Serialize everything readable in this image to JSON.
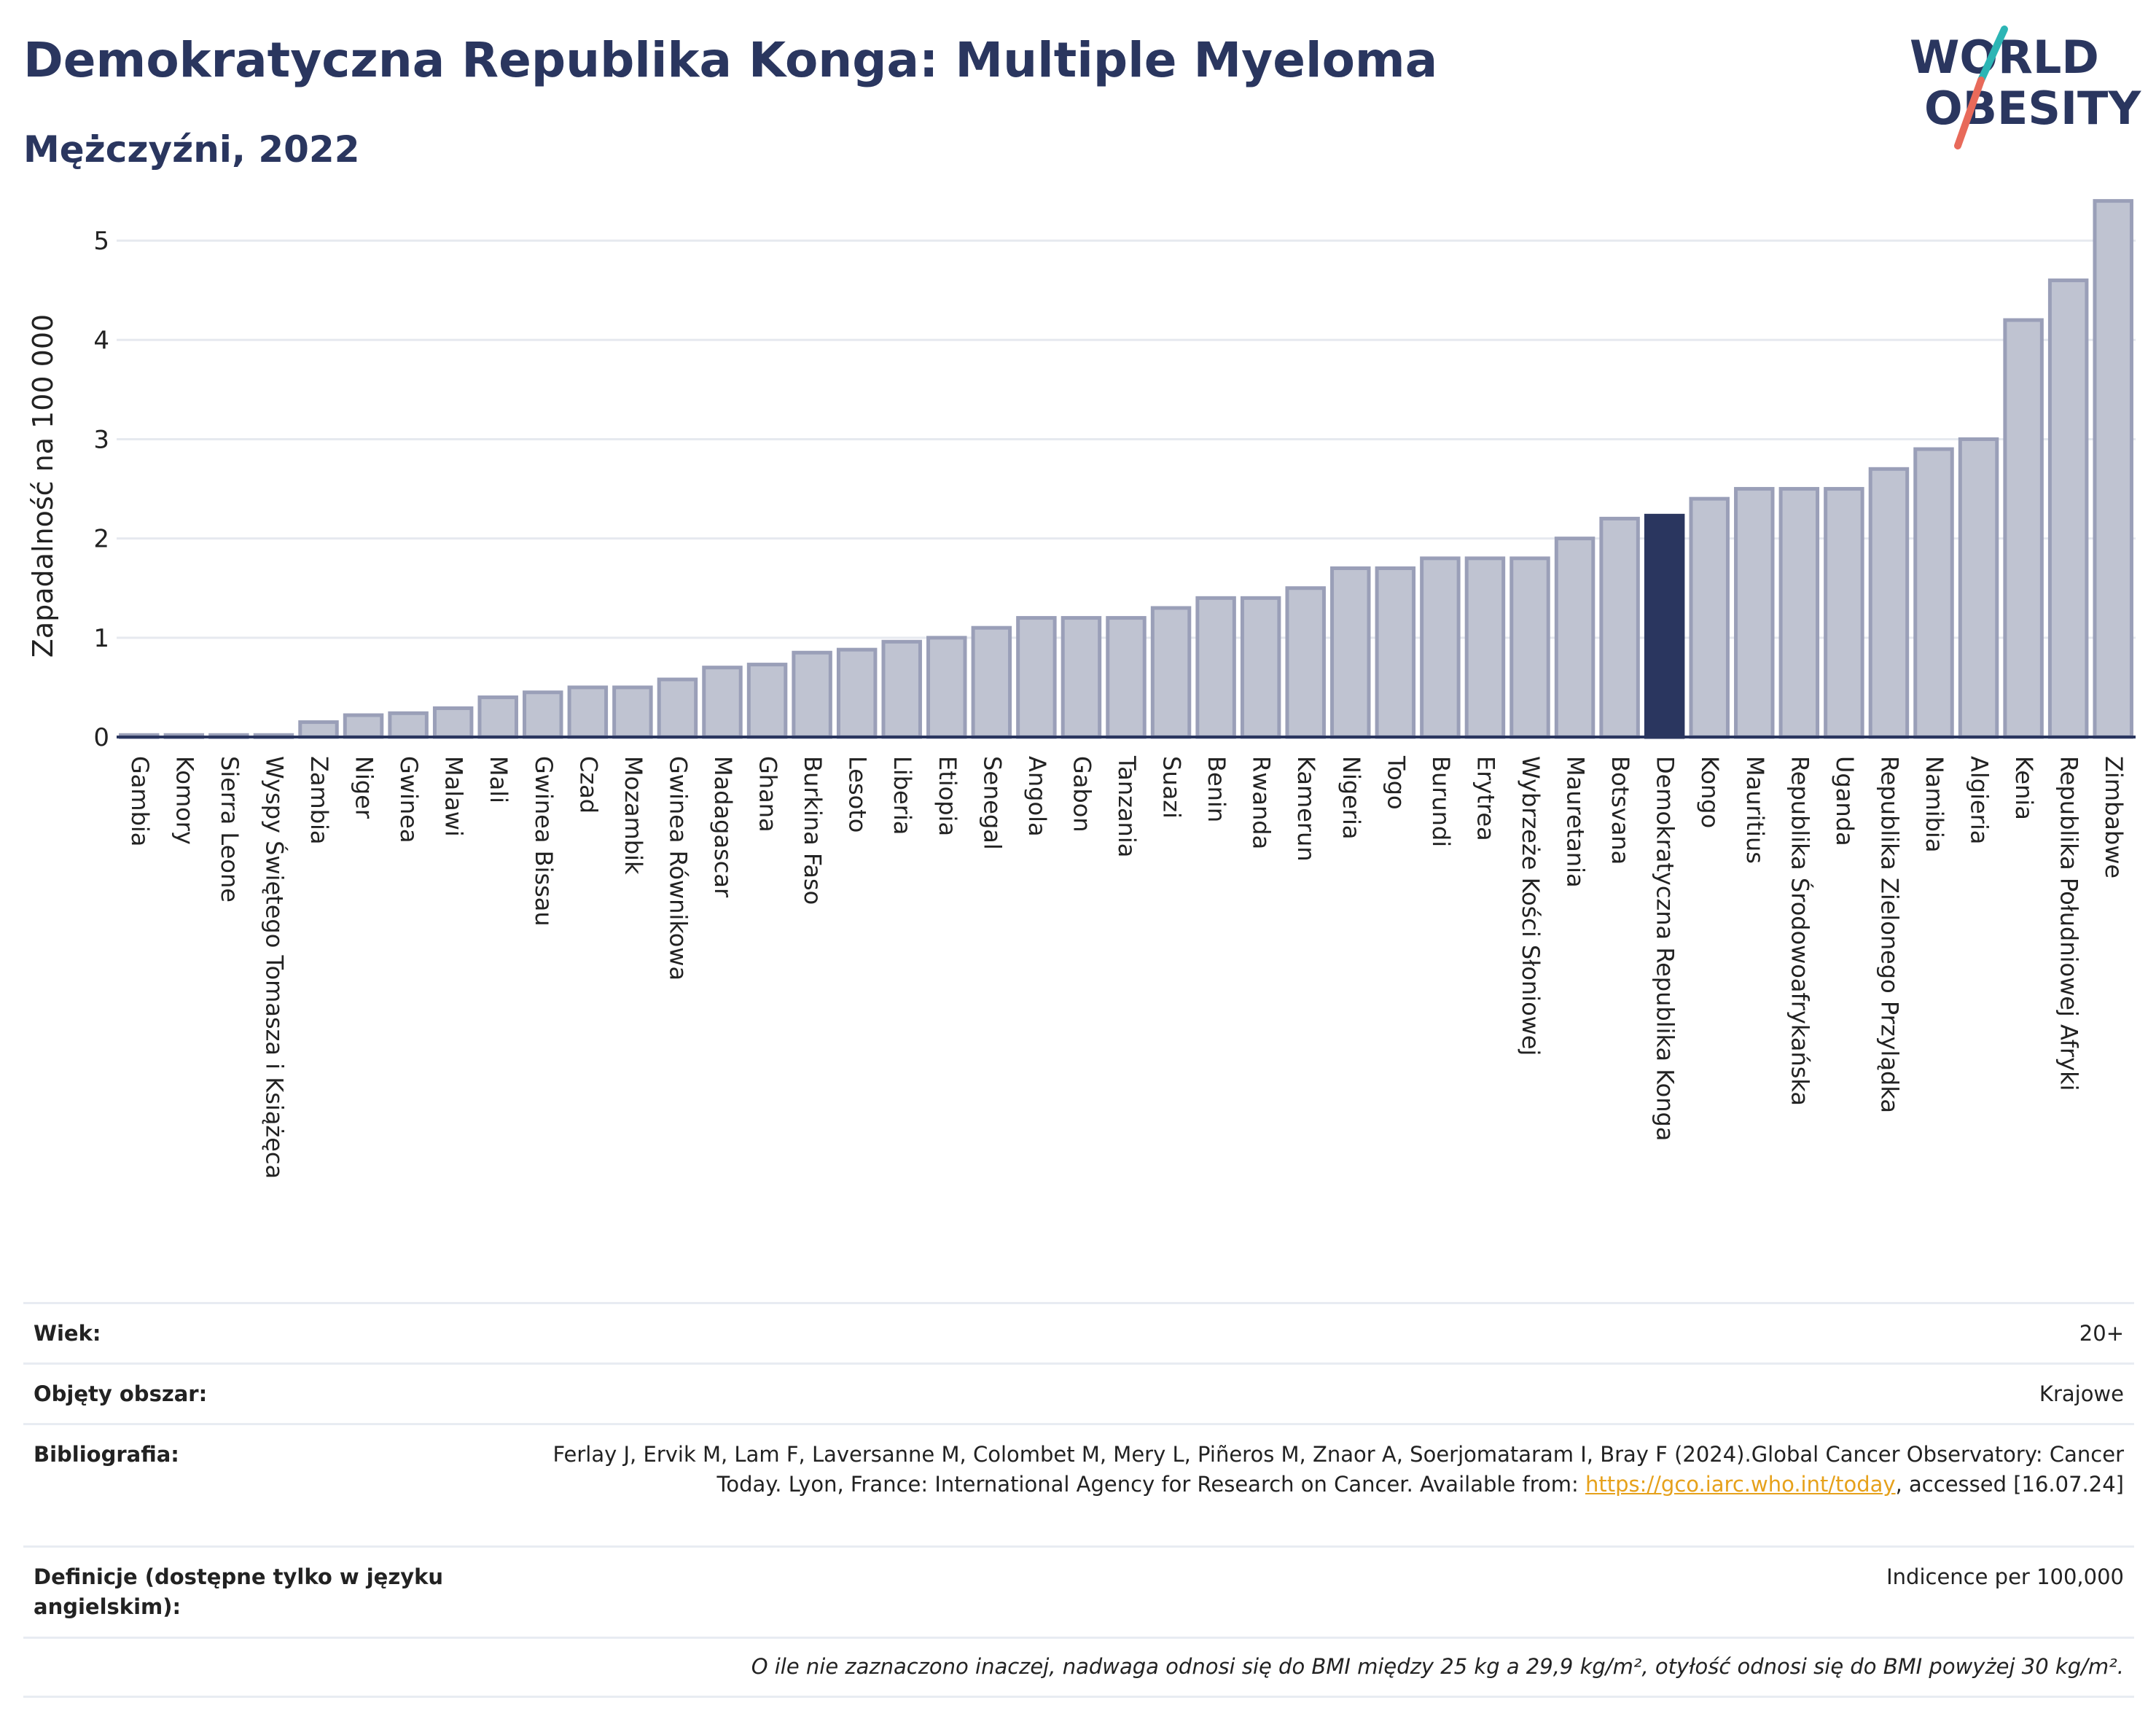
{
  "header": {
    "title": "Demokratyczna Republika Konga: Multiple Myeloma",
    "subtitle": "Mężczyźni, 2022"
  },
  "logo": {
    "line1": "WORLD",
    "line2": "OBESITY",
    "colors": {
      "text": "#2a365f",
      "slash_top": "#2cb5b5",
      "slash_bottom": "#e86a5a"
    }
  },
  "chart_data": {
    "type": "bar",
    "title": "Demokratyczna Republika Konga: Multiple Myeloma",
    "subtitle": "Mężczyźni, 2022",
    "ylabel": "Zapadalność na 100 000",
    "xlabel": "",
    "ylim": [
      0,
      5.5
    ],
    "yticks": [
      0,
      1,
      2,
      3,
      4,
      5
    ],
    "grid": true,
    "highlight": "Demokratyczna Republika Konga",
    "colors": {
      "bar": "#bfc3d1",
      "bar_edge": "#9a9fb8",
      "highlight": "#2a365f"
    },
    "categories": [
      "Gambia",
      "Komory",
      "Sierra Leone",
      "Wyspy Świętego Tomasza i Książęca",
      "Zambia",
      "Niger",
      "Gwinea",
      "Malawi",
      "Mali",
      "Gwinea Bissau",
      "Czad",
      "Mozambik",
      "Gwinea Równikowa",
      "Madagascar",
      "Ghana",
      "Burkina Faso",
      "Lesoto",
      "Liberia",
      "Etiopia",
      "Senegal",
      "Angola",
      "Gabon",
      "Tanzania",
      "Suazi",
      "Benin",
      "Rwanda",
      "Kamerun",
      "Nigeria",
      "Togo",
      "Burundi",
      "Erytrea",
      "Wybrzeże Kości Słoniowej",
      "Mauretania",
      "Botsvana",
      "Demokratyczna Republika Konga",
      "Kongo",
      "Mauritius",
      "Republika Środowoafrykańska",
      "Uganda",
      "Republika Zielonego Przylądka",
      "Namibia",
      "Algieria",
      "Kenia",
      "Republika Południowej Afryki",
      "Zimbabwe"
    ],
    "values": [
      0.02,
      0.02,
      0.02,
      0.02,
      0.15,
      0.22,
      0.24,
      0.29,
      0.4,
      0.45,
      0.5,
      0.5,
      0.58,
      0.7,
      0.73,
      0.85,
      0.88,
      0.96,
      1.0,
      1.1,
      1.2,
      1.2,
      1.2,
      1.3,
      1.4,
      1.4,
      1.5,
      1.7,
      1.7,
      1.8,
      1.8,
      1.8,
      2.0,
      2.2,
      2.23,
      2.4,
      2.5,
      2.5,
      2.5,
      2.7,
      2.9,
      3.0,
      4.2,
      4.6,
      5.4
    ]
  },
  "info": {
    "age_label": "Wiek:",
    "age_value": "20+",
    "coverage_label": "Objęty obszar:",
    "coverage_value": "Krajowe",
    "biblio_label": "Bibliografia:",
    "biblio_text_before": "Ferlay J, Ervik M, Lam F, Laversanne M, Colombet M, Mery L, Piñeros M, Znaor A, Soerjomataram I, Bray F (2024).Global Cancer Observatory: Cancer Today. Lyon, France: International Agency for Research on Cancer. Available from: ",
    "biblio_link": "https://gco.iarc.who.int/today",
    "biblio_text_after": ", accessed [16.07.24]",
    "definitions_label": "Definicje (dostępne tylko w języku angielskim):",
    "definitions_value": "Indicence per 100,000",
    "note": "O ile nie zaznaczono inaczej, nadwaga odnosi się do BMI między 25 kg a 29,9 kg/m², otyłość odnosi się do BMI powyżej 30 kg/m²."
  }
}
